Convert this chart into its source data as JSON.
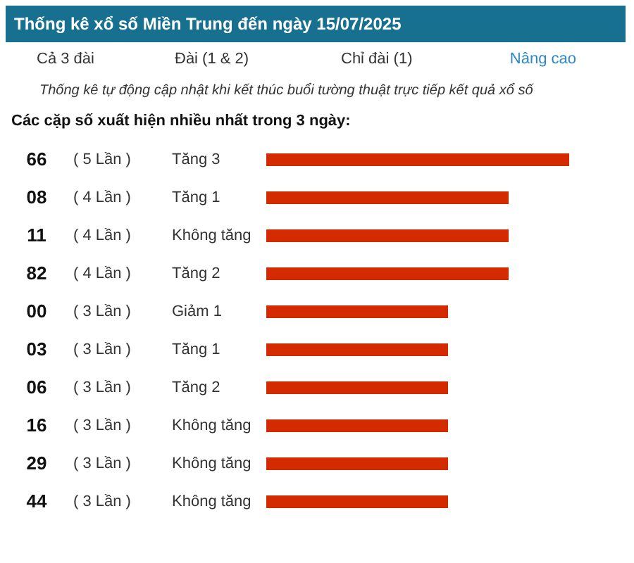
{
  "chart_data": {
    "type": "bar",
    "orientation": "horizontal",
    "title": "Thống kê xổ số Miền Trung đến ngày 15/07/2025",
    "subtitle": "Các cặp số xuất hiện nhiều nhất trong 3 ngày:",
    "categories": [
      "66",
      "08",
      "11",
      "82",
      "00",
      "03",
      "06",
      "16",
      "29",
      "44"
    ],
    "values": [
      5,
      4,
      4,
      4,
      3,
      3,
      3,
      3,
      3,
      3
    ],
    "value_labels": [
      "( 5 Lần )",
      "( 4 Lần )",
      "( 4 Lần )",
      "( 4 Lần )",
      "( 3 Lần )",
      "( 3 Lần )",
      "( 3 Lần )",
      "( 3 Lần )",
      "( 3 Lần )",
      "( 3 Lần )"
    ],
    "color": "#d42a00",
    "annotations": [
      "Cả 3 đài",
      "Đài (1 & 2)",
      "Chỉ đài (1)",
      "Nâng cao",
      "Thống kê tự động cập nhật khi kết thúc buổi tường thuật trực tiếp kết quả xổ số",
      "Tăng 3",
      "Tăng 1",
      "Không tăng",
      "Tăng 2",
      "Giảm 1",
      "Tăng 1",
      "Tăng 2",
      "Không tăng",
      "Không tăng",
      "Không tăng"
    ]
  }
}
